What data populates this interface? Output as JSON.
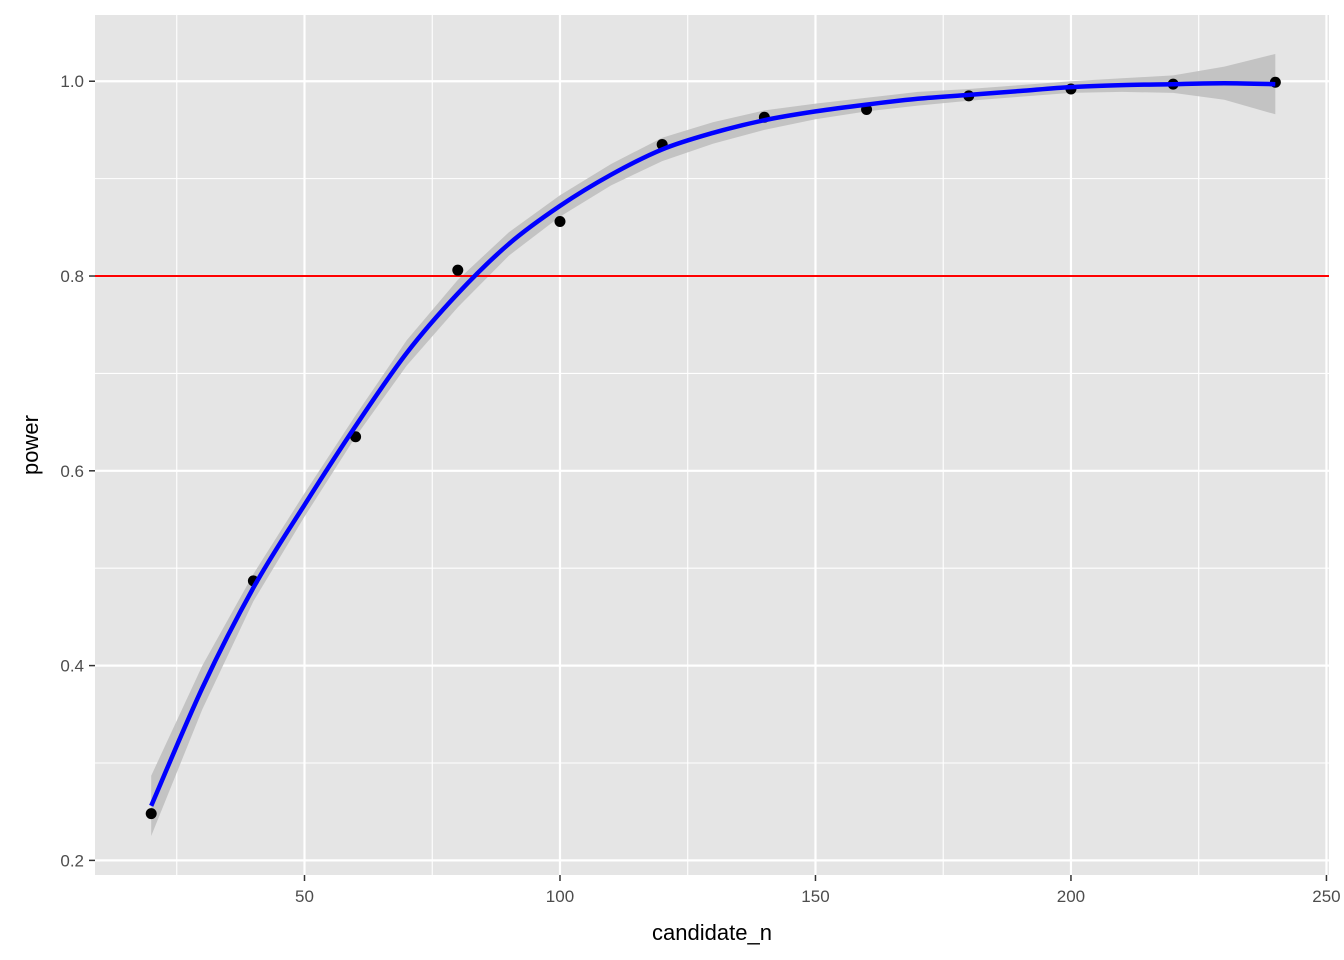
{
  "chart_data": {
    "type": "scatter",
    "xlabel": "candidate_n",
    "ylabel": "power",
    "xlim": [
      9,
      250.5
    ],
    "ylim": [
      0.185,
      1.068
    ],
    "x_ticks": [
      50,
      100,
      150,
      200,
      250
    ],
    "x_tick_labels": [
      "50",
      "100",
      "150",
      "200",
      "250"
    ],
    "x_minor_ticks": [
      25,
      75,
      125,
      175,
      225
    ],
    "y_ticks": [
      0.2,
      0.4,
      0.6,
      0.8,
      1.0
    ],
    "y_tick_labels": [
      "0.2",
      "0.4",
      "0.6",
      "0.8",
      "1.0"
    ],
    "y_minor_ticks": [
      0.3,
      0.5,
      0.7,
      0.9
    ],
    "grid": true,
    "points": {
      "x": [
        20,
        40,
        60,
        80,
        100,
        120,
        140,
        160,
        180,
        200,
        220,
        240
      ],
      "y": [
        0.248,
        0.487,
        0.635,
        0.806,
        0.856,
        0.935,
        0.963,
        0.971,
        0.985,
        0.992,
        0.997,
        0.999
      ]
    },
    "smooth": {
      "x": [
        20,
        30,
        40,
        50,
        60,
        70,
        80,
        90,
        100,
        110,
        120,
        130,
        140,
        150,
        160,
        170,
        180,
        190,
        200,
        210,
        220,
        230,
        240
      ],
      "y": [
        0.256,
        0.377,
        0.48,
        0.565,
        0.646,
        0.721,
        0.782,
        0.833,
        0.872,
        0.904,
        0.93,
        0.947,
        0.96,
        0.969,
        0.976,
        0.982,
        0.986,
        0.99,
        0.994,
        0.996,
        0.997,
        0.998,
        0.997
      ],
      "ymin": [
        0.225,
        0.355,
        0.466,
        0.553,
        0.635,
        0.708,
        0.768,
        0.821,
        0.861,
        0.893,
        0.918,
        0.936,
        0.95,
        0.961,
        0.969,
        0.975,
        0.98,
        0.984,
        0.988,
        0.989,
        0.988,
        0.981,
        0.966
      ],
      "ymax": [
        0.287,
        0.4,
        0.494,
        0.577,
        0.657,
        0.734,
        0.796,
        0.845,
        0.883,
        0.915,
        0.942,
        0.958,
        0.97,
        0.977,
        0.983,
        0.989,
        0.992,
        0.996,
        1.0,
        1.003,
        1.006,
        1.015,
        1.028
      ]
    },
    "hline": {
      "y": 0.8
    },
    "colors": {
      "panel": "#e5e5e5",
      "grid": "#ffffff",
      "points": "#000000",
      "smooth_line": "#0000ff",
      "ribbon": "#bdbdbd",
      "hline": "#ff0000"
    }
  }
}
